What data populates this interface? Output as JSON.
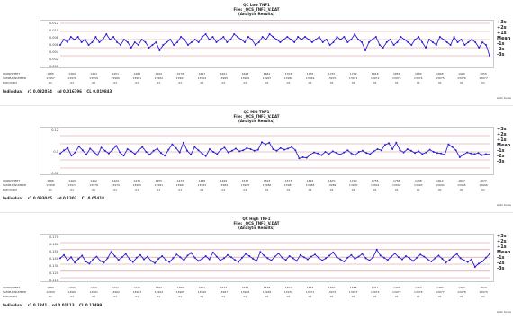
{
  "panels": [
    {
      "title_lines": [
        "QC Low TNF1",
        "File: _QCS_TNF3_V.DAT",
        "(Analytic Results)"
      ],
      "row_labels": [
        "WORKSHEET",
        "SAMPLE/NUMBER",
        "BATCH/IDX"
      ],
      "col_entries": [
        [
          "1385",
          "1369",
          "1413",
          "1451",
          "1484",
          "1509",
          "1576",
          "1627",
          "1651",
          "1698",
          "1681",
          "1704",
          "1735",
          "1767",
          "1799",
          "1818",
          "1854",
          "1880",
          "1896",
          "1916",
          "1950"
        ],
        [
          "13957",
          "13976",
          "13959",
          "13960",
          "13961",
          "13962",
          "13963",
          "13964",
          "13965",
          "13966",
          "13967",
          "13968",
          "13969",
          "13970",
          "13971",
          "13972",
          "13973",
          "13974",
          "13975",
          "13976",
          "13977"
        ],
        [
          "01",
          "01",
          "01",
          "01",
          "01",
          "01",
          "01",
          "01",
          "01",
          "01",
          "01",
          "01",
          "01",
          "01",
          "01",
          "01",
          "01",
          "01",
          "01",
          "01",
          "01"
        ]
      ],
      "stats": [
        "Individual",
        "r1 0.032034",
        "sd 0.016796",
        "CL 0.019843"
      ],
      "side_marks": [
        "+3s",
        "+2s",
        "+1s",
        "Mean",
        "-1s",
        "-2s",
        "-3s"
      ],
      "note": "Auto Scale",
      "chart_data": {
        "type": "line",
        "title": "",
        "ylim": [
          -0.003,
          0.013
        ],
        "y_ticks": [
          "0.012",
          "0.010",
          "0.008",
          "0.006",
          "0.004",
          "0.002",
          "0.000"
        ],
        "control_lines": [
          0.013,
          0.01,
          0.007,
          0.004,
          0.001
        ],
        "series": [
          {
            "color": "#2b1fd6",
            "values": [
              0.005,
              0.007,
              0.006,
              0.008,
              0.007,
              0.008,
              0.006,
              0.007,
              0.005,
              0.006,
              0.008,
              0.006,
              0.007,
              0.009,
              0.007,
              0.008,
              0.006,
              0.005,
              0.007,
              0.006,
              0.004,
              0.006,
              0.005,
              0.007,
              0.006,
              0.004,
              0.005,
              0.006,
              0.003,
              0.005,
              0.006,
              0.007,
              0.005,
              0.006,
              0.008,
              0.007,
              0.005,
              0.006,
              0.007,
              0.006,
              0.008,
              0.009,
              0.007,
              0.008,
              0.006,
              0.007,
              0.008,
              0.006,
              0.007,
              0.009,
              0.008,
              0.007,
              0.006,
              0.008,
              0.007,
              0.005,
              0.006,
              0.008,
              0.007,
              0.009,
              0.008,
              0.007,
              0.006,
              0.007,
              0.008,
              0.007,
              0.006,
              0.008,
              0.007,
              0.008,
              0.007,
              0.006,
              0.007,
              0.008,
              0.006,
              0.007,
              0.005,
              0.006,
              0.008,
              0.007,
              0.008,
              0.006,
              0.007,
              0.009,
              0.007,
              0.006,
              0.003,
              0.006,
              0.007,
              0.008,
              0.005,
              0.004,
              0.006,
              0.007,
              0.005,
              0.006,
              0.008,
              0.007,
              0.006,
              0.005,
              0.007,
              0.008,
              0.006,
              0.004,
              0.007,
              0.006,
              0.005,
              0.008,
              0.007,
              0.006,
              0.005,
              0.008,
              0.006,
              0.007,
              0.005,
              0.006,
              0.007,
              0.006,
              0.004,
              0.006,
              0.005,
              0.001
            ]
          }
        ]
      }
    },
    {
      "title_lines": [
        "QC Mid TNF1",
        "File: _QCS_TNF3_V.DAT",
        "(Analytic Results)"
      ],
      "row_labels": [
        "WORKSHEET",
        "SAMPLE/NUMBER",
        "BATCH/IDX"
      ],
      "col_entries": [
        [
          "1386",
          "1400",
          "1412",
          "1429",
          "1435",
          "1455",
          "1474",
          "1488",
          "1499",
          "1537",
          "1593",
          "1573",
          "1622",
          "1670",
          "1720",
          "1755",
          "1768",
          "1798",
          "1812",
          "1837",
          "1877"
        ],
        [
          "13958",
          "13977",
          "13978",
          "13979",
          "13980",
          "13981",
          "13982",
          "13983",
          "13984",
          "13985",
          "13986",
          "13987",
          "13988",
          "13989",
          "13990",
          "13991",
          "13992",
          "13993",
          "13994",
          "13995",
          "13996"
        ],
        [
          "01",
          "01",
          "01",
          "01",
          "01",
          "01",
          "01",
          "01",
          "01",
          "01",
          "01",
          "01",
          "01",
          "01",
          "01",
          "01",
          "01",
          "01",
          "01",
          "01",
          "01"
        ]
      ],
      "stats": [
        "Individual",
        "r1 0.093045",
        "sd 0.1303",
        "CL 0.05418"
      ],
      "side_marks": [
        "+3s",
        "+2s",
        "+1s",
        "Mean",
        "-1s",
        "-2s",
        "-3s"
      ],
      "note": "Auto Scale",
      "chart_data": {
        "type": "line",
        "title": "",
        "ylim": [
          0.055,
          0.135
        ],
        "y_ticks": [
          "0.12",
          "0.1",
          "0.08"
        ],
        "control_lines": [
          0.125,
          0.11,
          0.095,
          0.08,
          0.065
        ],
        "series": [
          {
            "color": "#2b1fd6",
            "values": [
              0.092,
              0.098,
              0.102,
              0.088,
              0.094,
              0.105,
              0.098,
              0.09,
              0.101,
              0.095,
              0.089,
              0.103,
              0.097,
              0.092,
              0.099,
              0.106,
              0.094,
              0.088,
              0.1,
              0.096,
              0.091,
              0.098,
              0.104,
              0.095,
              0.09,
              0.097,
              0.101,
              0.093,
              0.088,
              0.099,
              0.109,
              0.102,
              0.094,
              0.112,
              0.097,
              0.09,
              0.104,
              0.098,
              0.092,
              0.087,
              0.1,
              0.095,
              0.091,
              0.099,
              0.103,
              0.094,
              0.097,
              0.101,
              0.096,
              0.098,
              0.102,
              0.1,
              0.097,
              0.099,
              0.113,
              0.109,
              0.112,
              0.1,
              0.097,
              0.102,
              0.099,
              0.101,
              0.104,
              0.098,
              0.083,
              0.085,
              0.084,
              0.09,
              0.094,
              0.092,
              0.089,
              0.095,
              0.091,
              0.096,
              0.093,
              0.09,
              0.094,
              0.098,
              0.092,
              0.089,
              0.095,
              0.097,
              0.093,
              0.091,
              0.096,
              0.1,
              0.098,
              0.108,
              0.111,
              0.1,
              0.112,
              0.098,
              0.094,
              0.1,
              0.097,
              0.093,
              0.096,
              0.091,
              0.094,
              0.099,
              0.095,
              0.093,
              0.092,
              0.09,
              0.109,
              0.104,
              0.098,
              0.085,
              0.09,
              0.094,
              0.092,
              0.091,
              0.093,
              0.089,
              0.091,
              0.09
            ]
          }
        ]
      }
    },
    {
      "title_lines": [
        "QC High TNF1",
        "File: _QCS_TNF3_V.DAT",
        "(Analytic Results)"
      ],
      "row_labels": [
        "WORKSHEET",
        "SAMPLE/NUMBER",
        "BATCH/IDX"
      ],
      "col_entries": [
        [
          "1389",
          "1399",
          "1410",
          "1431",
          "1446",
          "1463",
          "1480",
          "1501",
          "1523",
          "1554",
          "1578",
          "1601",
          "1634",
          "1660",
          "1688",
          "1711",
          "1733",
          "1757",
          "1780",
          "1799",
          "1823"
        ],
        [
          "13959",
          "13960",
          "13961",
          "13962",
          "13963",
          "13964",
          "13965",
          "13966",
          "13967",
          "13968",
          "13969",
          "13970",
          "13971",
          "13972",
          "13973",
          "13974",
          "13975",
          "13976",
          "13977",
          "13978",
          "13979"
        ],
        [
          "01",
          "01",
          "01",
          "01",
          "01",
          "01",
          "01",
          "01",
          "01",
          "01",
          "01",
          "01",
          "01",
          "01",
          "01",
          "01",
          "01",
          "01",
          "01",
          "01",
          "01"
        ]
      ],
      "stats": [
        "Individual",
        "r1 0.1341",
        "sd 0.01113",
        "CL 0.11499"
      ],
      "side_marks": [
        "+3s",
        "+2s",
        "+1s",
        "Mean",
        "-1s",
        "-2s",
        "-3s"
      ],
      "note": "Auto Scale",
      "chart_data": {
        "type": "line",
        "title": "",
        "ylim": [
          0.095,
          0.175
        ],
        "y_ticks": [
          "0.170",
          "0.160",
          "0.150",
          "0.140",
          "0.130",
          "0.120",
          "0.110"
        ],
        "control_lines": [
          0.165,
          0.152,
          0.138,
          0.125,
          0.112,
          0.1
        ],
        "series": [
          {
            "color": "#2b1fd6",
            "values": [
              0.136,
              0.142,
              0.132,
              0.138,
              0.128,
              0.135,
              0.141,
              0.13,
              0.126,
              0.134,
              0.139,
              0.131,
              0.128,
              0.136,
              0.148,
              0.14,
              0.133,
              0.138,
              0.144,
              0.135,
              0.129,
              0.137,
              0.142,
              0.134,
              0.139,
              0.131,
              0.127,
              0.135,
              0.14,
              0.133,
              0.129,
              0.136,
              0.143,
              0.138,
              0.132,
              0.141,
              0.146,
              0.137,
              0.131,
              0.135,
              0.14,
              0.134,
              0.147,
              0.139,
              0.132,
              0.136,
              0.142,
              0.138,
              0.133,
              0.129,
              0.137,
              0.144,
              0.14,
              0.135,
              0.131,
              0.148,
              0.141,
              0.136,
              0.132,
              0.139,
              0.145,
              0.137,
              0.133,
              0.14,
              0.136,
              0.131,
              0.142,
              0.138,
              0.134,
              0.139,
              0.143,
              0.137,
              0.132,
              0.136,
              0.141,
              0.147,
              0.138,
              0.134,
              0.13,
              0.137,
              0.142,
              0.135,
              0.139,
              0.144,
              0.136,
              0.132,
              0.138,
              0.152,
              0.141,
              0.137,
              0.133,
              0.139,
              0.145,
              0.138,
              0.134,
              0.14,
              0.136,
              0.131,
              0.137,
              0.143,
              0.139,
              0.134,
              0.13,
              0.136,
              0.141,
              0.135,
              0.128,
              0.133,
              0.139,
              0.144,
              0.136,
              0.132,
              0.129,
              0.134,
              0.12,
              0.126,
              0.13,
              0.137,
              0.144
            ]
          }
        ]
      }
    }
  ]
}
